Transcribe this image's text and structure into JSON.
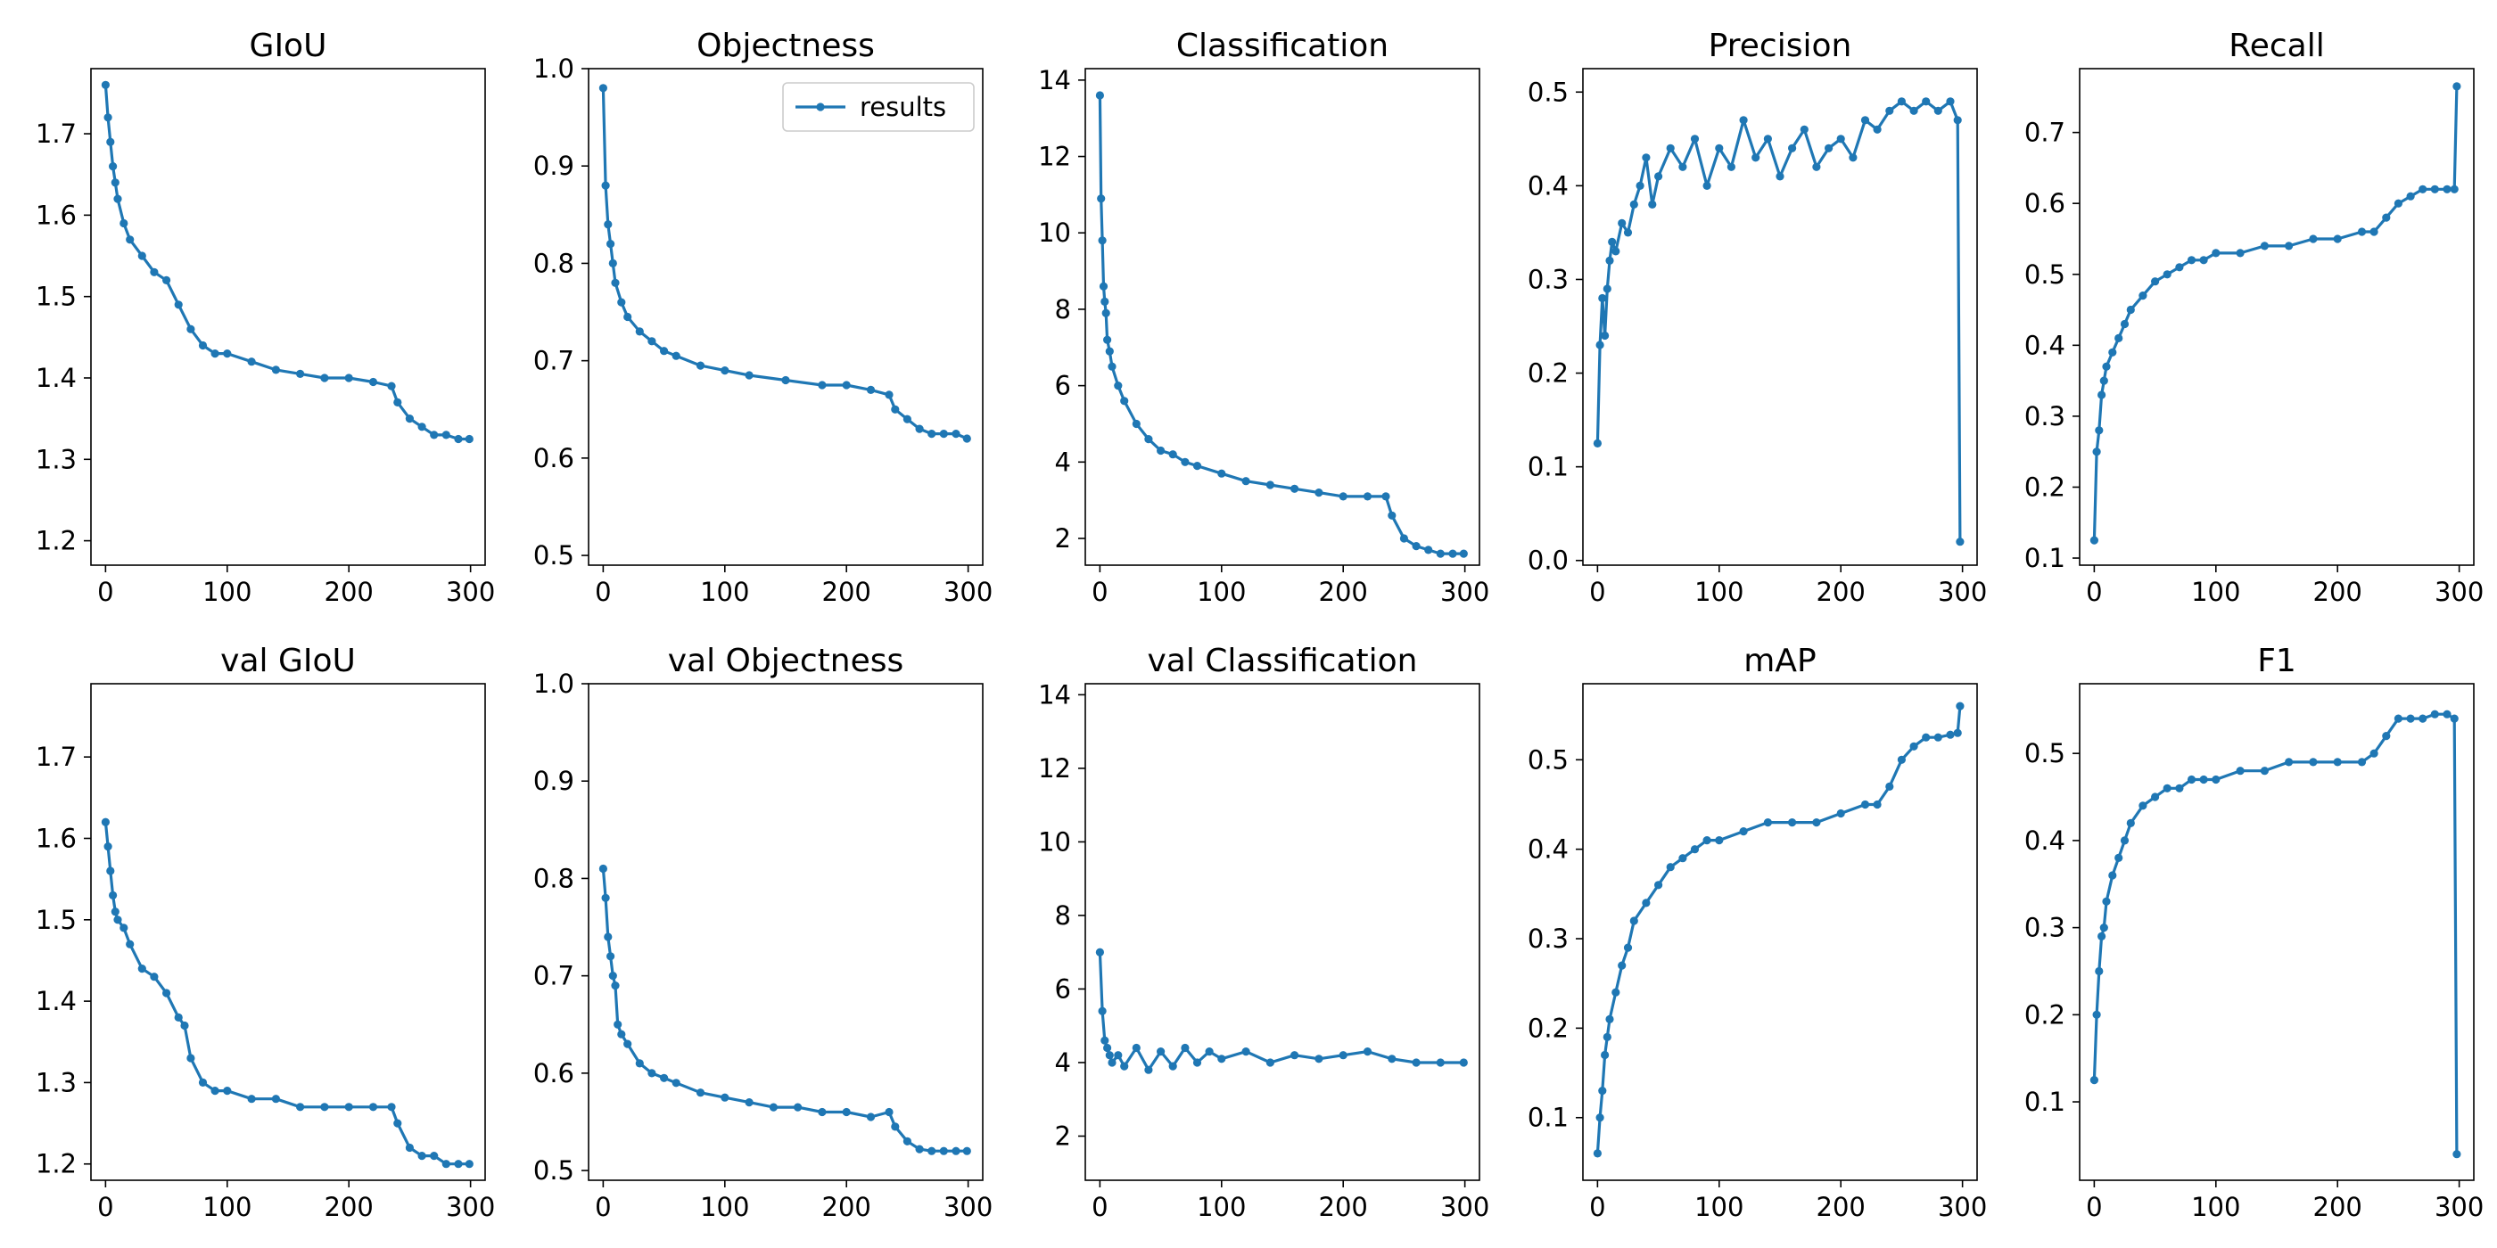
{
  "chart_data": [
    {
      "type": "line",
      "title": "GIoU",
      "xlim": [
        -12,
        312
      ],
      "ylim": [
        1.17,
        1.78
      ],
      "xticks": [
        0,
        100,
        200,
        300
      ],
      "yticks": [
        1.2,
        1.3,
        1.4,
        1.5,
        1.6,
        1.7
      ],
      "series": [
        {
          "name": "results",
          "color": "#1f77b4",
          "marker": "dot",
          "x": [
            0,
            2,
            4,
            6,
            8,
            10,
            15,
            20,
            30,
            40,
            50,
            60,
            70,
            80,
            90,
            100,
            120,
            140,
            160,
            180,
            200,
            220,
            235,
            240,
            250,
            260,
            270,
            280,
            290,
            299
          ],
          "y": [
            1.76,
            1.72,
            1.69,
            1.66,
            1.64,
            1.62,
            1.59,
            1.57,
            1.55,
            1.53,
            1.52,
            1.49,
            1.46,
            1.44,
            1.43,
            1.43,
            1.42,
            1.41,
            1.405,
            1.4,
            1.4,
            1.395,
            1.39,
            1.37,
            1.35,
            1.34,
            1.33,
            1.33,
            1.325,
            1.325
          ]
        }
      ]
    },
    {
      "type": "line",
      "title": "Objectness",
      "xlim": [
        -12,
        312
      ],
      "ylim": [
        0.49,
        1.0
      ],
      "xticks": [
        0,
        100,
        200,
        300
      ],
      "yticks": [
        0.5,
        0.6,
        0.7,
        0.8,
        0.9,
        1.0
      ],
      "legend": {
        "position": "top-right",
        "entries": [
          "results"
        ]
      },
      "series": [
        {
          "name": "results",
          "color": "#1f77b4",
          "marker": "dot",
          "x": [
            0,
            2,
            4,
            6,
            8,
            10,
            15,
            20,
            30,
            40,
            50,
            60,
            80,
            100,
            120,
            150,
            180,
            200,
            220,
            235,
            240,
            250,
            260,
            270,
            280,
            290,
            299
          ],
          "y": [
            0.98,
            0.88,
            0.84,
            0.82,
            0.8,
            0.78,
            0.76,
            0.745,
            0.73,
            0.72,
            0.71,
            0.705,
            0.695,
            0.69,
            0.685,
            0.68,
            0.675,
            0.675,
            0.67,
            0.665,
            0.65,
            0.64,
            0.63,
            0.625,
            0.625,
            0.625,
            0.62
          ]
        }
      ]
    },
    {
      "type": "line",
      "title": "Classification",
      "xlim": [
        -12,
        312
      ],
      "ylim": [
        1.3,
        14.3
      ],
      "xticks": [
        0,
        100,
        200,
        300
      ],
      "yticks": [
        2,
        4,
        6,
        8,
        10,
        12,
        14
      ],
      "series": [
        {
          "name": "results",
          "color": "#1f77b4",
          "marker": "dot",
          "x": [
            0,
            1,
            2,
            3,
            4,
            5,
            6,
            8,
            10,
            15,
            20,
            30,
            40,
            50,
            60,
            70,
            80,
            100,
            120,
            140,
            160,
            180,
            200,
            220,
            235,
            240,
            250,
            260,
            270,
            280,
            290,
            299
          ],
          "y": [
            13.6,
            10.9,
            9.8,
            8.6,
            8.2,
            7.9,
            7.2,
            6.9,
            6.5,
            6.0,
            5.6,
            5.0,
            4.6,
            4.3,
            4.2,
            4.0,
            3.9,
            3.7,
            3.5,
            3.4,
            3.3,
            3.2,
            3.1,
            3.1,
            3.1,
            2.6,
            2.0,
            1.8,
            1.7,
            1.6,
            1.6,
            1.6
          ]
        }
      ]
    },
    {
      "type": "line",
      "title": "Precision",
      "xlim": [
        -12,
        312
      ],
      "ylim": [
        -0.005,
        0.525
      ],
      "xticks": [
        0,
        100,
        200,
        300
      ],
      "yticks": [
        0.0,
        0.1,
        0.2,
        0.3,
        0.4,
        0.5
      ],
      "series": [
        {
          "name": "results",
          "color": "#1f77b4",
          "marker": "dot",
          "x": [
            0,
            2,
            4,
            6,
            8,
            10,
            12,
            15,
            20,
            25,
            30,
            35,
            40,
            45,
            50,
            60,
            70,
            80,
            90,
            100,
            110,
            120,
            130,
            140,
            150,
            160,
            170,
            180,
            190,
            200,
            210,
            220,
            230,
            240,
            250,
            260,
            270,
            280,
            290,
            296,
            298
          ],
          "y": [
            0.125,
            0.23,
            0.28,
            0.24,
            0.29,
            0.32,
            0.34,
            0.33,
            0.36,
            0.35,
            0.38,
            0.4,
            0.43,
            0.38,
            0.41,
            0.44,
            0.42,
            0.45,
            0.4,
            0.44,
            0.42,
            0.47,
            0.43,
            0.45,
            0.41,
            0.44,
            0.46,
            0.42,
            0.44,
            0.45,
            0.43,
            0.47,
            0.46,
            0.48,
            0.49,
            0.48,
            0.49,
            0.48,
            0.49,
            0.47,
            0.02
          ]
        }
      ]
    },
    {
      "type": "line",
      "title": "Recall",
      "xlim": [
        -12,
        312
      ],
      "ylim": [
        0.09,
        0.79
      ],
      "xticks": [
        0,
        100,
        200,
        300
      ],
      "yticks": [
        0.1,
        0.2,
        0.3,
        0.4,
        0.5,
        0.6,
        0.7
      ],
      "series": [
        {
          "name": "results",
          "color": "#1f77b4",
          "marker": "dot",
          "x": [
            0,
            2,
            4,
            6,
            8,
            10,
            15,
            20,
            25,
            30,
            40,
            50,
            60,
            70,
            80,
            90,
            100,
            120,
            140,
            160,
            180,
            200,
            220,
            230,
            240,
            250,
            260,
            270,
            280,
            290,
            296,
            298
          ],
          "y": [
            0.125,
            0.25,
            0.28,
            0.33,
            0.35,
            0.37,
            0.39,
            0.41,
            0.43,
            0.45,
            0.47,
            0.49,
            0.5,
            0.51,
            0.52,
            0.52,
            0.53,
            0.53,
            0.54,
            0.54,
            0.55,
            0.55,
            0.56,
            0.56,
            0.58,
            0.6,
            0.61,
            0.62,
            0.62,
            0.62,
            0.62,
            0.765
          ]
        }
      ]
    },
    {
      "type": "line",
      "title": "val GIoU",
      "xlim": [
        -12,
        312
      ],
      "ylim": [
        1.18,
        1.79
      ],
      "xticks": [
        0,
        100,
        200,
        300
      ],
      "yticks": [
        1.2,
        1.3,
        1.4,
        1.5,
        1.6,
        1.7
      ],
      "series": [
        {
          "name": "results",
          "color": "#1f77b4",
          "marker": "dot",
          "x": [
            0,
            2,
            4,
            6,
            8,
            10,
            15,
            20,
            30,
            40,
            50,
            60,
            65,
            70,
            80,
            90,
            100,
            120,
            140,
            160,
            180,
            200,
            220,
            235,
            240,
            250,
            260,
            270,
            280,
            290,
            299
          ],
          "y": [
            1.62,
            1.59,
            1.56,
            1.53,
            1.51,
            1.5,
            1.49,
            1.47,
            1.44,
            1.43,
            1.41,
            1.38,
            1.37,
            1.33,
            1.3,
            1.29,
            1.29,
            1.28,
            1.28,
            1.27,
            1.27,
            1.27,
            1.27,
            1.27,
            1.25,
            1.22,
            1.21,
            1.21,
            1.2,
            1.2,
            1.2
          ]
        }
      ]
    },
    {
      "type": "line",
      "title": "val Objectness",
      "xlim": [
        -12,
        312
      ],
      "ylim": [
        0.49,
        1.0
      ],
      "xticks": [
        0,
        100,
        200,
        300
      ],
      "yticks": [
        0.5,
        0.6,
        0.7,
        0.8,
        0.9,
        1.0
      ],
      "series": [
        {
          "name": "results",
          "color": "#1f77b4",
          "marker": "dot",
          "x": [
            0,
            2,
            4,
            6,
            8,
            10,
            12,
            15,
            20,
            30,
            40,
            50,
            60,
            80,
            100,
            120,
            140,
            160,
            180,
            200,
            220,
            235,
            240,
            250,
            260,
            270,
            280,
            290,
            299
          ],
          "y": [
            0.81,
            0.78,
            0.74,
            0.72,
            0.7,
            0.69,
            0.65,
            0.64,
            0.63,
            0.61,
            0.6,
            0.595,
            0.59,
            0.58,
            0.575,
            0.57,
            0.565,
            0.565,
            0.56,
            0.56,
            0.555,
            0.56,
            0.545,
            0.53,
            0.522,
            0.52,
            0.52,
            0.52,
            0.52
          ]
        }
      ]
    },
    {
      "type": "line",
      "title": "val Classification",
      "xlim": [
        -12,
        312
      ],
      "ylim": [
        0.8,
        14.3
      ],
      "xticks": [
        0,
        100,
        200,
        300
      ],
      "yticks": [
        2,
        4,
        6,
        8,
        10,
        12,
        14
      ],
      "series": [
        {
          "name": "results",
          "color": "#1f77b4",
          "marker": "dot",
          "x": [
            0,
            2,
            4,
            6,
            8,
            10,
            15,
            20,
            30,
            40,
            50,
            60,
            70,
            80,
            90,
            100,
            120,
            140,
            160,
            180,
            200,
            220,
            240,
            260,
            280,
            299
          ],
          "y": [
            7.0,
            5.4,
            4.6,
            4.4,
            4.2,
            4.0,
            4.2,
            3.9,
            4.4,
            3.8,
            4.3,
            3.9,
            4.4,
            4.0,
            4.3,
            4.1,
            4.3,
            4.0,
            4.2,
            4.1,
            4.2,
            4.3,
            4.1,
            4.0,
            4.0,
            4.0
          ]
        }
      ]
    },
    {
      "type": "line",
      "title": "mAP",
      "xlim": [
        -12,
        312
      ],
      "ylim": [
        0.03,
        0.585
      ],
      "xticks": [
        0,
        100,
        200,
        300
      ],
      "yticks": [
        0.1,
        0.2,
        0.3,
        0.4,
        0.5
      ],
      "series": [
        {
          "name": "results",
          "color": "#1f77b4",
          "marker": "dot",
          "x": [
            0,
            2,
            4,
            6,
            8,
            10,
            15,
            20,
            25,
            30,
            40,
            50,
            60,
            70,
            80,
            90,
            100,
            120,
            140,
            160,
            180,
            200,
            220,
            230,
            240,
            250,
            260,
            270,
            280,
            290,
            296,
            298
          ],
          "y": [
            0.06,
            0.1,
            0.13,
            0.17,
            0.19,
            0.21,
            0.24,
            0.27,
            0.29,
            0.32,
            0.34,
            0.36,
            0.38,
            0.39,
            0.4,
            0.41,
            0.41,
            0.42,
            0.43,
            0.43,
            0.43,
            0.44,
            0.45,
            0.45,
            0.47,
            0.5,
            0.515,
            0.525,
            0.525,
            0.528,
            0.53,
            0.56
          ]
        }
      ]
    },
    {
      "type": "line",
      "title": "F1",
      "xlim": [
        -12,
        312
      ],
      "ylim": [
        0.01,
        0.58
      ],
      "xticks": [
        0,
        100,
        200,
        300
      ],
      "yticks": [
        0.1,
        0.2,
        0.3,
        0.4,
        0.5
      ],
      "series": [
        {
          "name": "results",
          "color": "#1f77b4",
          "marker": "dot",
          "x": [
            0,
            2,
            4,
            6,
            8,
            10,
            15,
            20,
            25,
            30,
            40,
            50,
            60,
            70,
            80,
            90,
            100,
            120,
            140,
            160,
            180,
            200,
            220,
            230,
            240,
            250,
            260,
            270,
            280,
            290,
            296,
            298
          ],
          "y": [
            0.125,
            0.2,
            0.25,
            0.29,
            0.3,
            0.33,
            0.36,
            0.38,
            0.4,
            0.42,
            0.44,
            0.45,
            0.46,
            0.46,
            0.47,
            0.47,
            0.47,
            0.48,
            0.48,
            0.49,
            0.49,
            0.49,
            0.49,
            0.5,
            0.52,
            0.54,
            0.54,
            0.54,
            0.545,
            0.545,
            0.54,
            0.04
          ]
        }
      ]
    }
  ]
}
